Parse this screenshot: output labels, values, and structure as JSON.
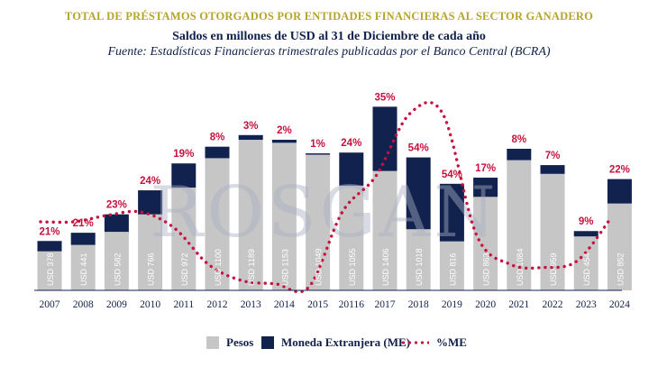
{
  "header": {
    "title": "TOTAL DE PRÉSTAMOS OTORGADOS POR ENTIDADES FINANCIERAS AL SECTOR GANADERO",
    "subtitle": "Saldos en millones de USD al 31 de Diciembre de cada año",
    "source": "Fuente: Estadísticas Financieras trimestrales publicadas por el Banco Central (BCRA)"
  },
  "watermark": "ROSGAN",
  "colors": {
    "pesos": "#c6c6c6",
    "me": "#12224e",
    "pct": "#c8103e",
    "title": "#b6a42c"
  },
  "legend": {
    "pesos": "Pesos",
    "me": "Moneda Extranjera (ME)",
    "pct": "%ME"
  },
  "chart_data": {
    "type": "bar",
    "stacked": true,
    "categories": [
      "2007",
      "2008",
      "2009",
      "2010",
      "2011",
      "2012",
      "2013",
      "2014",
      "2015",
      "20116",
      "2017",
      "2018",
      "2019",
      "2020",
      "2021",
      "2022",
      "2023",
      "2024"
    ],
    "total_labels": [
      "USD 378",
      "USD 441",
      "USD 582",
      "USD 766",
      "USD 972",
      "USD 1100",
      "USD 1189",
      "USD 1153",
      "USD 1049",
      "USD 1055",
      "USD 1406",
      "USD 1018",
      "USD 816",
      "USD 863",
      "USD 1084",
      "USD 959",
      "USD 454",
      "USD 852"
    ],
    "series": [
      {
        "name": "Pesos",
        "values": [
          299,
          348,
          448,
          582,
          787,
          1012,
          1153,
          1130,
          1039,
          802,
          914,
          468,
          375,
          716,
          997,
          892,
          413,
          665
        ]
      },
      {
        "name": "Moneda Extranjera (ME)",
        "values": [
          79,
          93,
          134,
          184,
          185,
          88,
          36,
          23,
          10,
          253,
          492,
          550,
          441,
          147,
          87,
          67,
          41,
          187
        ]
      }
    ],
    "pct_me": {
      "name": "%ME",
      "values": [
        21,
        21,
        23,
        24,
        19,
        8,
        3,
        2,
        1,
        24,
        35,
        54,
        54,
        17,
        8,
        7,
        9,
        22
      ],
      "labels": [
        "21%",
        "21%",
        "23%",
        "24%",
        "19%",
        "8%",
        "3%",
        "2%",
        "1%",
        "24%",
        "35%",
        "54%",
        "54%",
        "17%",
        "8%",
        "7%",
        "9%",
        "22%"
      ]
    },
    "ylim": [
      0,
      1450
    ],
    "grid": false,
    "legend_position": "bottom"
  }
}
